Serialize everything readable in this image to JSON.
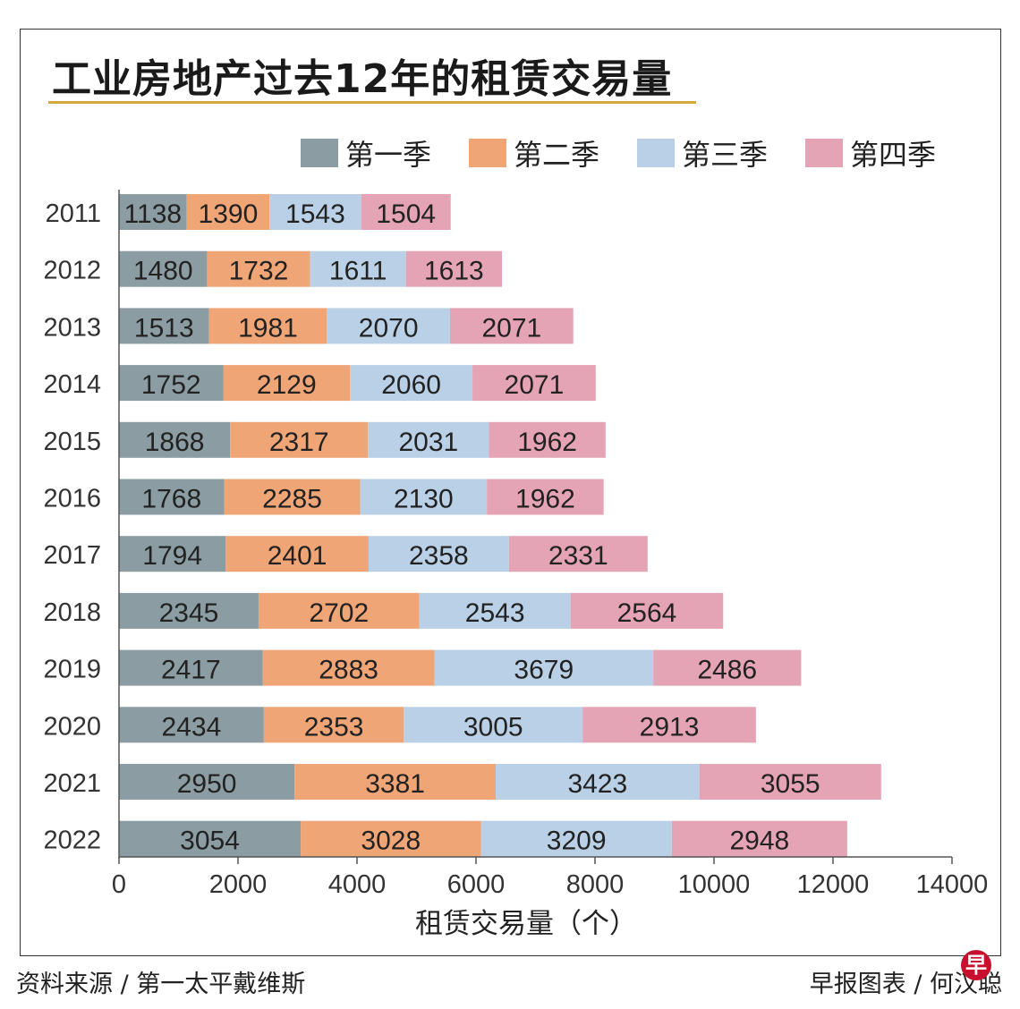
{
  "chart_data": {
    "type": "bar",
    "orientation": "horizontal",
    "stacked": true,
    "title": "工业房地产过去12年的租赁交易量",
    "xlabel": "租赁交易量（个）",
    "ylabel": "",
    "xlim": [
      0,
      14000
    ],
    "xticks": [
      0,
      2000,
      4000,
      6000,
      8000,
      10000,
      12000,
      14000
    ],
    "grid": false,
    "legend_position": "top-right",
    "categories": [
      "2011",
      "2012",
      "2013",
      "2014",
      "2015",
      "2016",
      "2017",
      "2018",
      "2019",
      "2020",
      "2021",
      "2022"
    ],
    "series": [
      {
        "name": "第一季",
        "color": "#8b9ca2",
        "values": [
          1138,
          1480,
          1513,
          1752,
          1868,
          1768,
          1794,
          2345,
          2417,
          2434,
          2950,
          3054
        ]
      },
      {
        "name": "第二季",
        "color": "#f0a577",
        "values": [
          1390,
          1732,
          1981,
          2129,
          2317,
          2285,
          2401,
          2702,
          2883,
          2353,
          3381,
          3028
        ]
      },
      {
        "name": "第三季",
        "color": "#b9d0e6",
        "values": [
          1543,
          1611,
          2070,
          2060,
          2031,
          2130,
          2358,
          2543,
          3679,
          3005,
          3423,
          3209
        ]
      },
      {
        "name": "第四季",
        "color": "#e5a4b5",
        "values": [
          1504,
          1613,
          2071,
          2071,
          1962,
          1962,
          2331,
          2564,
          2486,
          2913,
          3055,
          2948
        ]
      }
    ]
  },
  "footer": {
    "source": "资料来源 / 第一太平戴维斯",
    "credit": "早报图表 / 何汉聪",
    "logo": "早"
  },
  "colors": {
    "title_underline": "#d4a93c"
  }
}
